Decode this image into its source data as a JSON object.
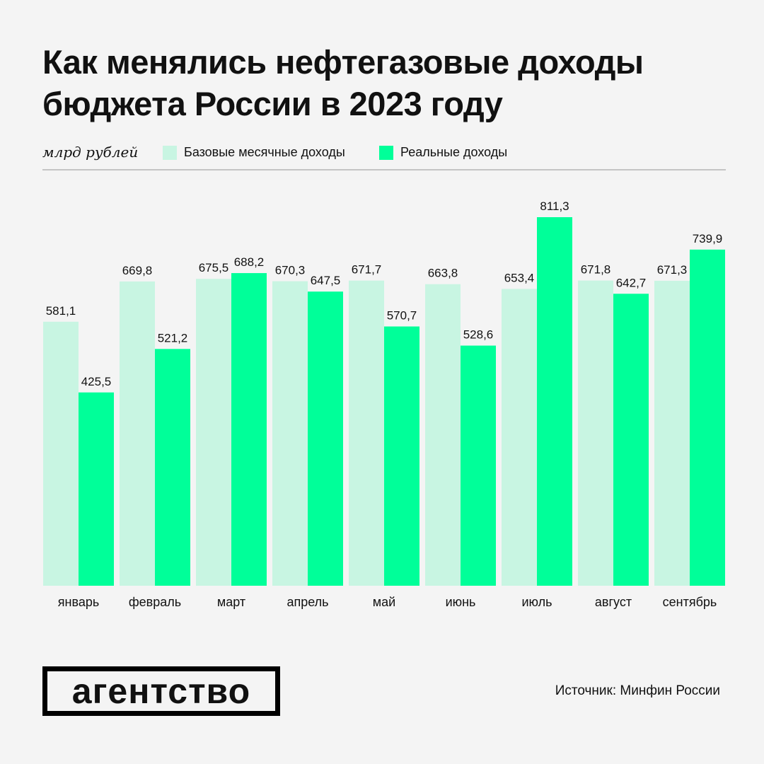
{
  "title_line1": "Как менялись нефтегазовые доходы",
  "title_line2": "бюджета России в 2023 году",
  "unit": "млрд рублей",
  "logo_text": "агентство",
  "source": "Источник: Минфин России",
  "colors": {
    "base": "#c8f5e2",
    "real": "#00ff99",
    "background": "#f4f4f4"
  },
  "chart_data": {
    "type": "bar",
    "categories": [
      "январь",
      "февраль",
      "март",
      "апрель",
      "май",
      "июнь",
      "июль",
      "август",
      "сентябрь"
    ],
    "series": [
      {
        "name": "Базовые месячные доходы",
        "values": [
          581.1,
          669.8,
          675.5,
          670.3,
          671.7,
          663.8,
          653.4,
          671.8,
          671.3
        ],
        "labels": [
          "581,1",
          "669,8",
          "675,5",
          "670,3",
          "671,7",
          "663,8",
          "653,4",
          "671,8",
          "671,3"
        ]
      },
      {
        "name": "Реальные доходы",
        "values": [
          425.5,
          521.2,
          688.2,
          647.5,
          570.7,
          528.6,
          811.3,
          642.7,
          739.9
        ],
        "labels": [
          "425,5",
          "521,2",
          "688,2",
          "647,5",
          "570,7",
          "528,6",
          "811,3",
          "642,7",
          "739,9"
        ]
      }
    ],
    "ylim": [
      0,
      811.3
    ],
    "grid": false,
    "legend": "top-left"
  }
}
